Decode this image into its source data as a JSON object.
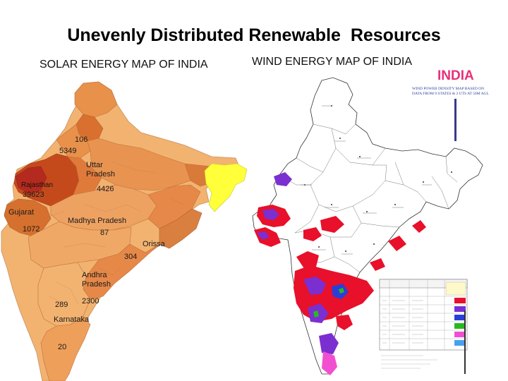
{
  "title": "Unevenly Distributed Renewable  Resources",
  "solar": {
    "heading": "SOLAR ENERGY MAP OF INDIA",
    "labels": {
      "v106": "106",
      "v5349": "5349",
      "uttar": "Uttar",
      "pradesh_up": "Pradesh",
      "rajasthan": "Rajasthan",
      "v39623": "39623",
      "v4426": "4426",
      "gujarat": "Gujarat",
      "v1072": "1072",
      "mp": "Madhya Pradesh",
      "v87": "87",
      "orissa": "Orissa",
      "v304": "304",
      "andhra": "Andhra",
      "pradesh_ap": "Pradesh",
      "v2300": "2300",
      "v289": "289",
      "karnataka": "Karnataka",
      "v20": "20"
    },
    "colors": {
      "light": "#f2b370",
      "mid": "#e8914a",
      "dark": "#d97030",
      "deep": "#c44a1c",
      "red": "#b52a1e",
      "yellow": "#ffff3a"
    }
  },
  "wind": {
    "heading": "WIND ENERGY MAP OF INDIA",
    "map_heading": "INDIA",
    "map_subtitle_1": "WIND POWER DENSITY MAP BASED ON",
    "map_subtitle_2": "DATA FROM 9 STATES & 2 UTS AT 50M AGL",
    "colors": {
      "red": "#e8102a",
      "purple": "#7b2fd0",
      "blue": "#2a3fd8",
      "green": "#2ab820",
      "pink": "#f24fd0"
    }
  }
}
